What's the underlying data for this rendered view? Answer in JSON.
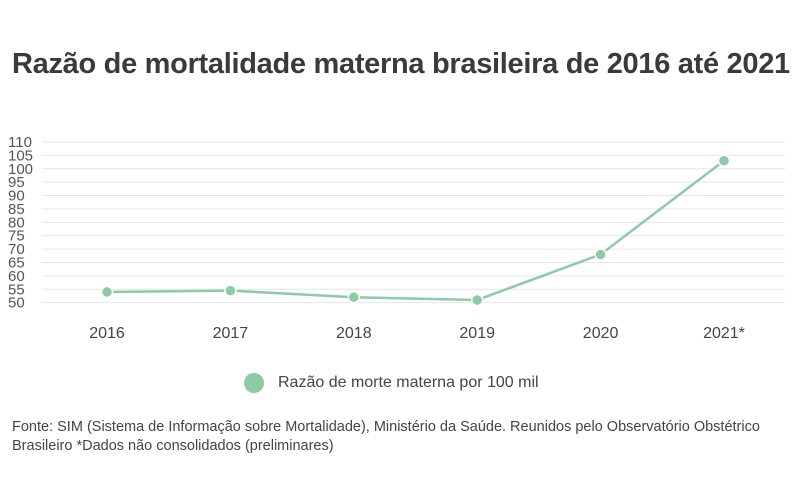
{
  "title": "Razão de mortalidade materna brasileira de 2016 até 2021",
  "chart_data": {
    "type": "line",
    "title": "Razão de mortalidade materna brasileira de 2016 até 2021",
    "categories": [
      "2016",
      "2017",
      "2018",
      "2019",
      "2020",
      "2021*"
    ],
    "series": [
      {
        "name": "Razão de morte materna por 100 mil",
        "values": [
          54.0,
          54.5,
          52.0,
          51.0,
          68.0,
          103.0
        ]
      }
    ],
    "yticks": [
      50,
      55,
      60,
      65,
      70,
      75,
      80,
      85,
      90,
      95,
      100,
      105,
      110
    ],
    "ylim": [
      48,
      110
    ],
    "grid": true,
    "legend": "bottom-center",
    "colors": {
      "line": "#8fcaa6",
      "marker": "#8fcaa6",
      "marker_edge": "#ffffff",
      "grid": "#e6e6e6"
    }
  },
  "legend": {
    "label": "Razão de morte materna por 100 mil"
  },
  "source": "Fonte: SIM (Sistema de Informação sobre Mortalidade), Ministério da Saúde. Reunidos pelo Observatório Obstétrico Brasileiro  *Dados não consolidados (preliminares)"
}
